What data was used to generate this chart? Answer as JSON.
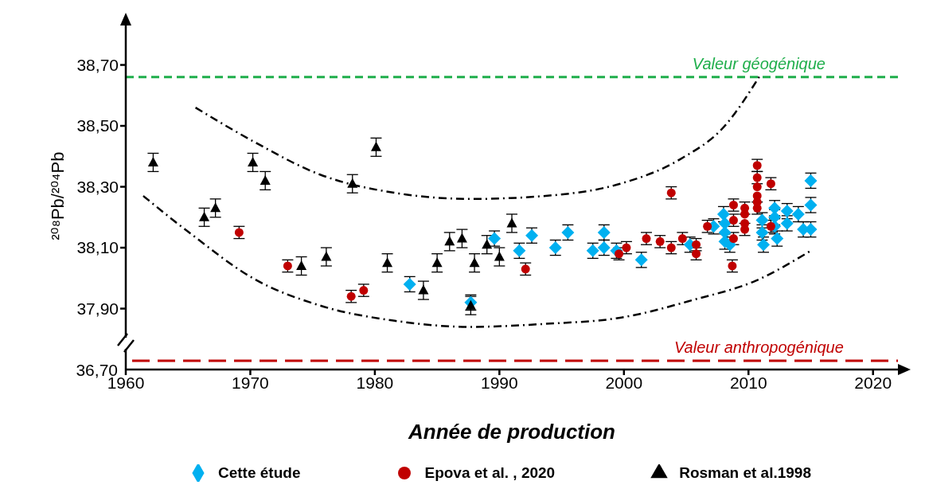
{
  "chart_data": [
    {
      "type": "scatter",
      "xlabel": "Année de production",
      "ylabel": "²⁰⁸Pb/²⁰⁴Pb",
      "xlim": [
        1960,
        2022
      ],
      "xticks": [
        1960,
        1970,
        1980,
        1990,
        2000,
        2010,
        2020
      ],
      "ylim": [
        37.7,
        38.84
      ],
      "yticks": [
        {
          "value": 37.9,
          "label": "37,90"
        },
        {
          "value": 38.1,
          "label": "38,10"
        },
        {
          "value": 38.3,
          "label": "38,30"
        },
        {
          "value": 38.5,
          "label": "38,50"
        },
        {
          "value": 38.7,
          "label": "38,70"
        }
      ],
      "grid": false,
      "legend": "bottom",
      "ref_lines": [
        {
          "axis": "y",
          "value": 38.66,
          "label": "Valeur géogénique",
          "color": "#1fae4b",
          "line_style": "dashed"
        }
      ],
      "series": [
        {
          "name": "Cette étude",
          "color": "#00b0f0",
          "marker": "diamond",
          "x": [
            1982.8,
            1987.7,
            1989.6,
            1991.6,
            1992.6,
            1994.5,
            1995.5,
            1997.5,
            1998.4,
            1998.4,
            1999.4,
            2001.4,
            2005.3,
            2007.2,
            2008.0,
            2008.1,
            2008.1,
            2008.1,
            2008.5,
            2011.1,
            2011.1,
            2011.2,
            2012.1,
            2012.1,
            2012.1,
            2012.3,
            2013.1,
            2013.1,
            2014.0,
            2014.4,
            2015.0,
            2015.0,
            2015.0
          ],
          "values": [
            37.98,
            37.92,
            38.13,
            38.09,
            38.14,
            38.1,
            38.15,
            38.09,
            38.15,
            38.1,
            38.09,
            38.06,
            38.11,
            38.17,
            38.21,
            38.18,
            38.15,
            38.12,
            38.11,
            38.19,
            38.15,
            38.11,
            38.23,
            38.2,
            38.17,
            38.13,
            38.22,
            38.18,
            38.21,
            38.16,
            38.32,
            38.24,
            38.16
          ],
          "errors": [
            0.025,
            0.025,
            0.025,
            0.025,
            0.025,
            0.025,
            0.025,
            0.025,
            0.025,
            0.025,
            0.025,
            0.025,
            0.025,
            0.025,
            0.025,
            null,
            null,
            0.025,
            0.025,
            0.025,
            0.025,
            0.025,
            0.025,
            0.025,
            0.025,
            0.025,
            0.025,
            0.025,
            0.025,
            0.025,
            0.025,
            0.025,
            0.025
          ]
        },
        {
          "name": "Epova et al. , 2020",
          "color": "#c00000",
          "marker": "circle",
          "x": [
            1969.1,
            1973.0,
            1978.1,
            1979.1,
            1992.1,
            1999.6,
            2000.2,
            2001.8,
            2002.9,
            2003.8,
            2003.8,
            2004.7,
            2005.8,
            2005.8,
            2006.7,
            2008.7,
            2008.8,
            2008.8,
            2008.8,
            2009.7,
            2009.7,
            2009.7,
            2009.7,
            2010.7,
            2010.7,
            2010.7,
            2010.7,
            2010.7,
            2010.7,
            2011.8,
            2011.8
          ],
          "values": [
            38.15,
            38.04,
            37.94,
            37.96,
            38.03,
            38.08,
            38.1,
            38.13,
            38.12,
            38.28,
            38.1,
            38.13,
            38.11,
            38.08,
            38.17,
            38.04,
            38.24,
            38.19,
            38.13,
            38.23,
            38.21,
            38.18,
            38.16,
            38.37,
            38.33,
            38.3,
            38.27,
            38.25,
            38.23,
            38.31,
            38.17
          ],
          "errors": [
            0.02,
            0.02,
            0.02,
            0.02,
            0.02,
            0.02,
            0.02,
            0.02,
            0.02,
            0.02,
            0.02,
            0.02,
            0.02,
            0.02,
            0.02,
            0.02,
            0.02,
            0.02,
            0.02,
            0.02,
            null,
            null,
            0.02,
            0.02,
            0.02,
            null,
            null,
            null,
            0.02,
            0.02,
            0.02
          ]
        },
        {
          "name": "Rosman et al.1998",
          "color": "#000000",
          "marker": "triangle",
          "x": [
            1962.2,
            1966.3,
            1967.2,
            1970.2,
            1971.2,
            1974.1,
            1976.1,
            1978.2,
            1980.1,
            1981.0,
            1983.9,
            1985.0,
            1986.0,
            1987.0,
            1987.7,
            1988.0,
            1989.0,
            1990.0,
            1991.0
          ],
          "values": [
            38.38,
            38.2,
            38.23,
            38.38,
            38.32,
            38.04,
            38.07,
            38.31,
            38.43,
            38.05,
            37.96,
            38.05,
            38.12,
            38.13,
            37.91,
            38.05,
            38.11,
            38.07,
            38.18
          ],
          "errors": [
            0.03,
            0.03,
            0.03,
            0.03,
            0.03,
            0.03,
            0.03,
            0.03,
            0.03,
            0.03,
            0.03,
            0.03,
            0.03,
            0.03,
            0.03,
            0.03,
            0.03,
            0.03,
            0.03
          ]
        },
        {
          "type": "line",
          "color": "#000000",
          "line_style": "dashdot",
          "x": [
            1965.6,
            1970.2,
            1975.6,
            1981.6,
            1987.7,
            1993.7,
            1999.7,
            2004.5,
            2008.1,
            2011.0
          ],
          "values": [
            38.56,
            38.45,
            38.34,
            38.28,
            38.26,
            38.27,
            38.31,
            38.39,
            38.5,
            38.67
          ]
        },
        {
          "type": "line",
          "color": "#000000",
          "line_style": "dashdot",
          "x": [
            1961.4,
            1965.4,
            1970.2,
            1975.6,
            1981.6,
            1987.7,
            1993.7,
            1999.7,
            2005.7,
            2010.5,
            2015.0
          ],
          "values": [
            38.27,
            38.14,
            38.0,
            37.91,
            37.86,
            37.84,
            37.85,
            37.87,
            37.93,
            37.99,
            38.09
          ]
        }
      ]
    },
    {
      "type": "other",
      "annotations": [
        "36,70",
        "Valeur anthropogénique"
      ]
    }
  ]
}
